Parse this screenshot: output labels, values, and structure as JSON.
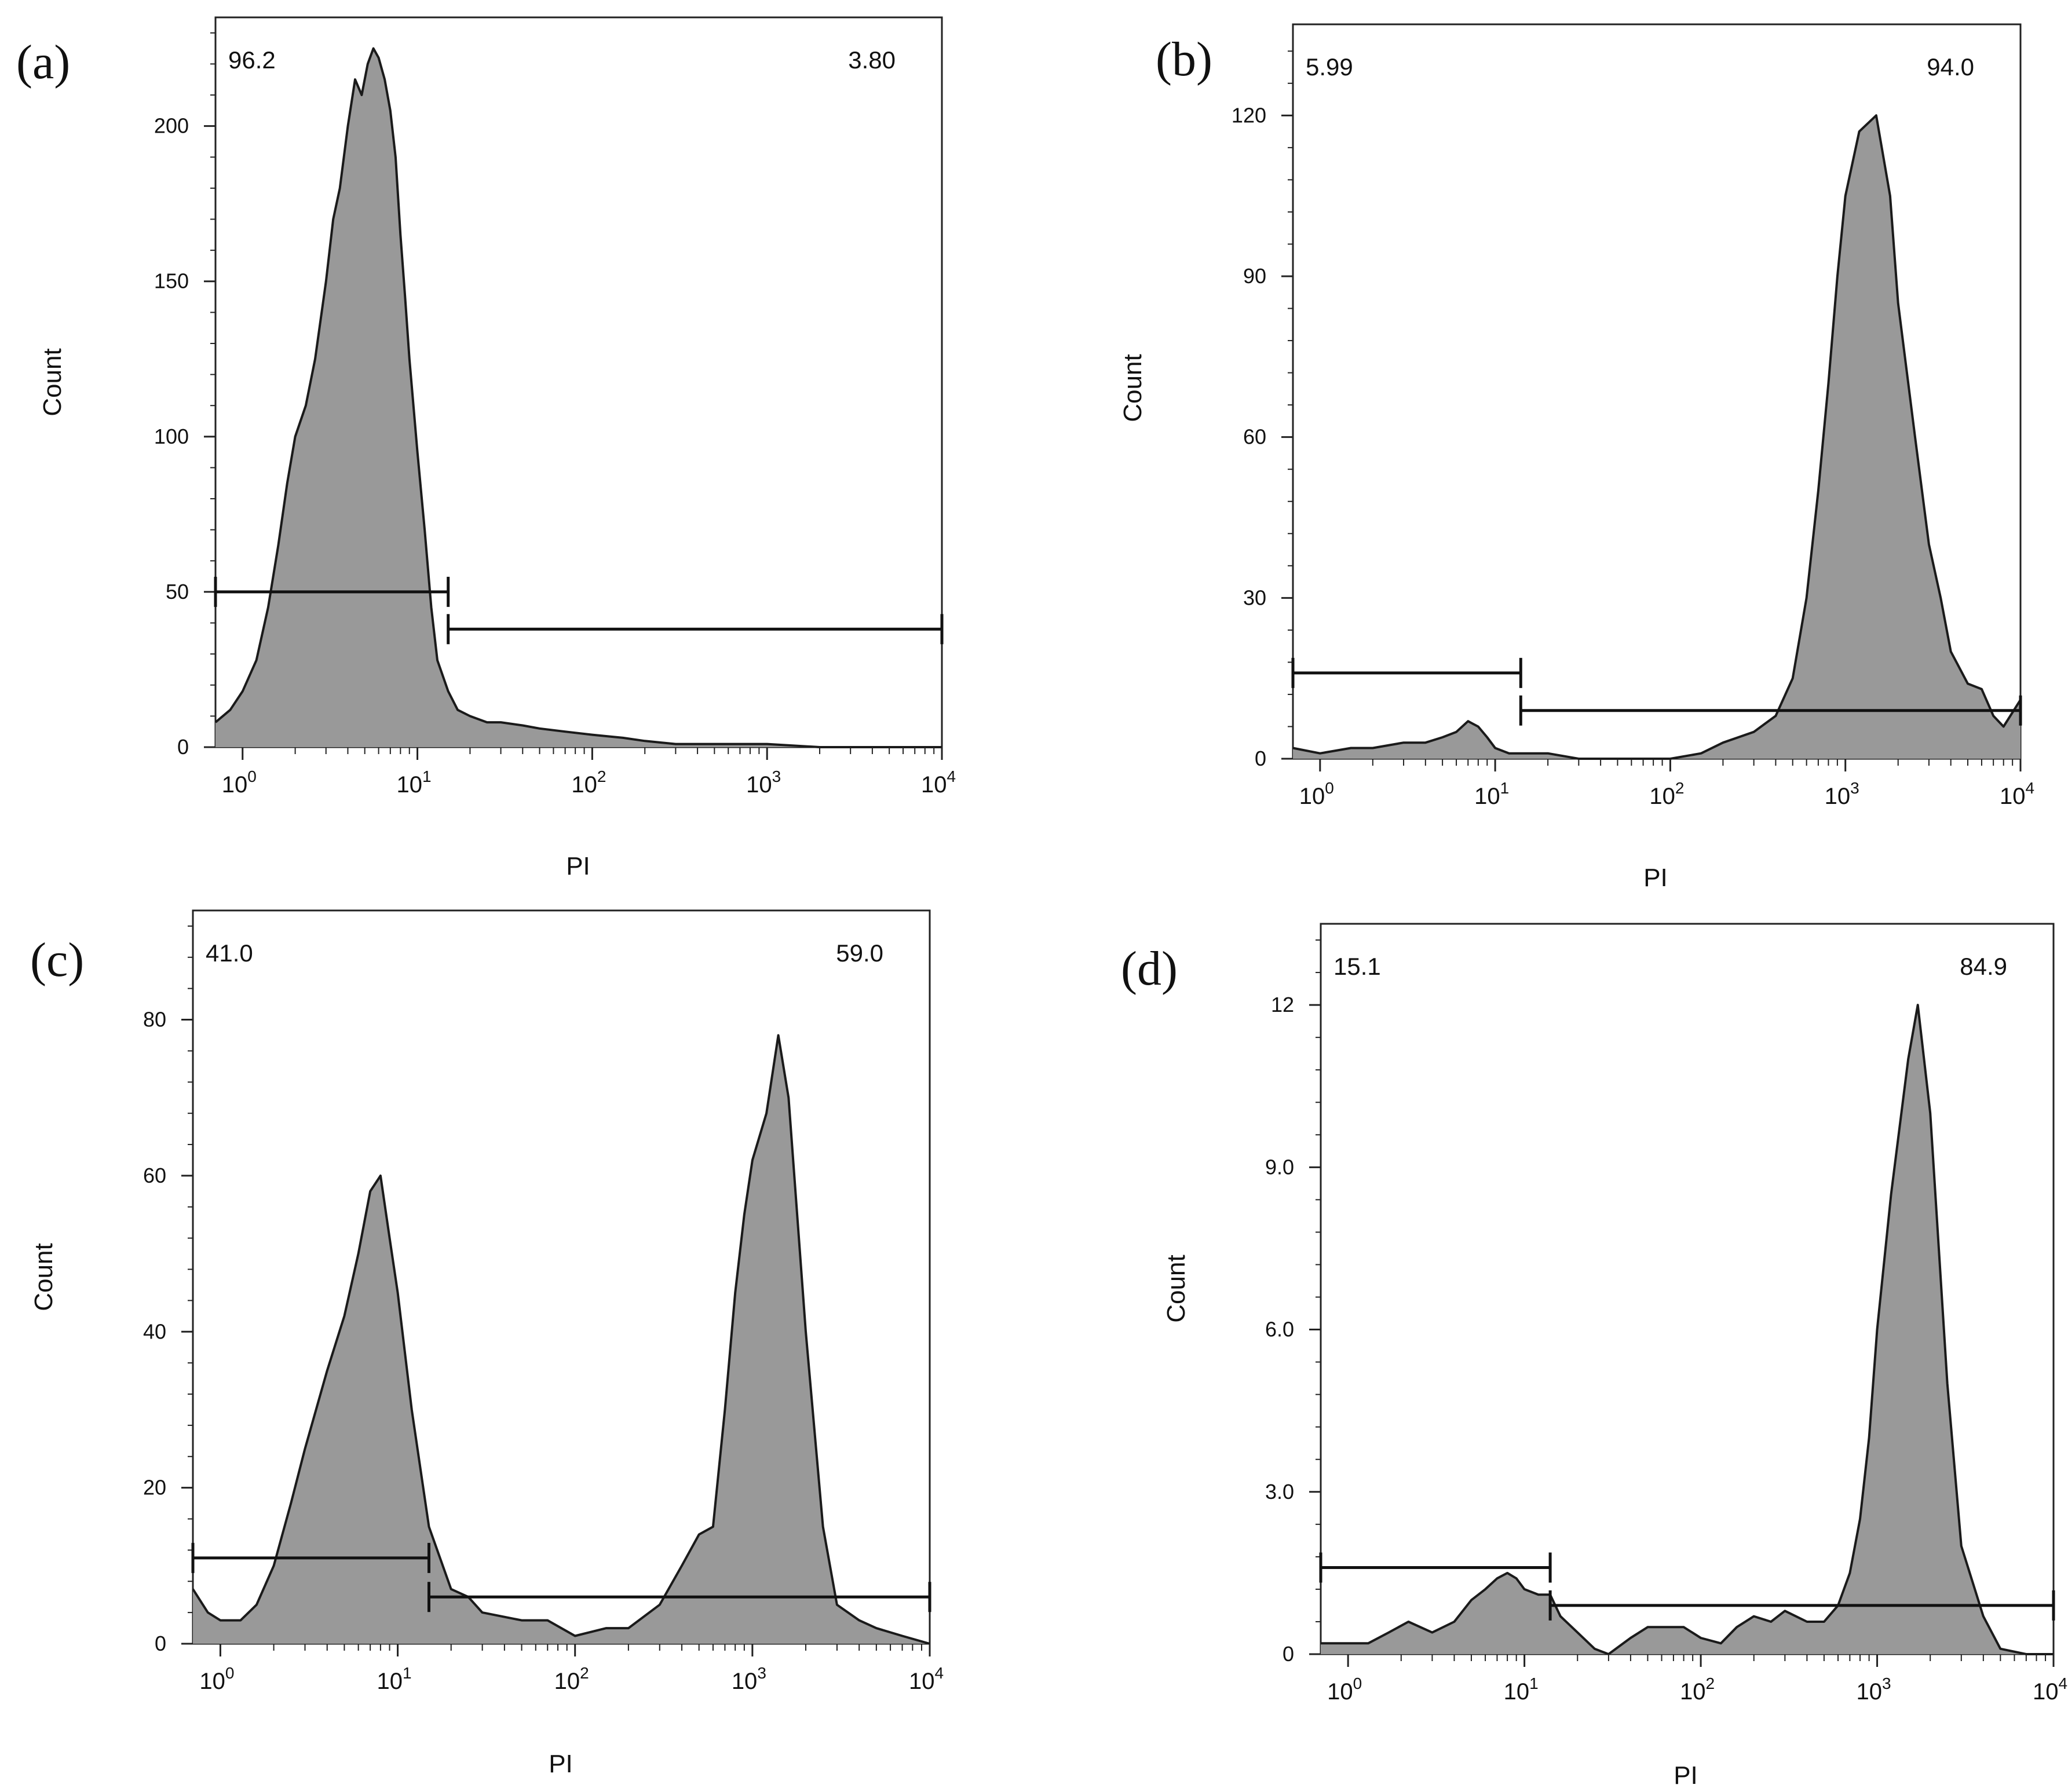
{
  "figure": {
    "x_axis_label": "PI",
    "y_axis_label": "Count"
  },
  "chart_data": [
    {
      "type": "histogram",
      "panel_label": "(a)",
      "xlabel": "PI",
      "ylabel": "Count",
      "xscale": "log",
      "xlim": [
        0.7,
        10000
      ],
      "ylim": [
        0,
        235
      ],
      "x_tick_labels": [
        {
          "base": "10",
          "exp": "0"
        },
        {
          "base": "10",
          "exp": "1"
        },
        {
          "base": "10",
          "exp": "2"
        },
        {
          "base": "10",
          "exp": "3"
        },
        {
          "base": "10",
          "exp": "4"
        }
      ],
      "x_tick_values": [
        1,
        10,
        100,
        1000,
        10000
      ],
      "y_ticks": [
        0,
        50,
        100,
        150,
        200
      ],
      "y_tick_labels": [
        "0",
        "50",
        "100",
        "150",
        "200"
      ],
      "y_minor_step": 10,
      "gates": [
        {
          "label": "96.2",
          "label_position": "top-left",
          "x_range": [
            0.7,
            15
          ],
          "y_level": 50
        },
        {
          "label": "3.80",
          "label_position": "top-right",
          "x_range": [
            15,
            10000
          ],
          "y_level": 38
        }
      ],
      "histogram": {
        "x": [
          0.7,
          0.85,
          1.0,
          1.2,
          1.4,
          1.6,
          1.8,
          2.0,
          2.3,
          2.6,
          3.0,
          3.3,
          3.6,
          4.0,
          4.4,
          4.8,
          5.2,
          5.6,
          6.0,
          6.5,
          7.0,
          7.5,
          8.0,
          8.5,
          9.0,
          10,
          11,
          12,
          13,
          15,
          17,
          20,
          25,
          30,
          40,
          50,
          70,
          100,
          150,
          200,
          300,
          500,
          1000,
          2000,
          5000,
          10000
        ],
        "y": [
          8,
          12,
          18,
          28,
          45,
          65,
          85,
          100,
          110,
          125,
          150,
          170,
          180,
          200,
          215,
          210,
          220,
          225,
          222,
          215,
          205,
          190,
          165,
          145,
          125,
          95,
          70,
          45,
          28,
          18,
          12,
          10,
          8,
          8,
          7,
          6,
          5,
          4,
          3,
          2,
          1,
          1,
          1,
          0,
          0,
          0
        ]
      }
    },
    {
      "type": "histogram",
      "panel_label": "(b)",
      "xlabel": "PI",
      "ylabel": "Count",
      "xscale": "log",
      "xlim": [
        0.7,
        10000
      ],
      "ylim": [
        0,
        137
      ],
      "x_tick_labels": [
        {
          "base": "10",
          "exp": "0"
        },
        {
          "base": "10",
          "exp": "1"
        },
        {
          "base": "10",
          "exp": "2"
        },
        {
          "base": "10",
          "exp": "3"
        },
        {
          "base": "10",
          "exp": "4"
        }
      ],
      "x_tick_values": [
        1,
        10,
        100,
        1000,
        10000
      ],
      "y_ticks": [
        0,
        30,
        60,
        90,
        120
      ],
      "y_tick_labels": [
        "0",
        "30",
        "60",
        "90",
        "120"
      ],
      "y_minor_step": 6,
      "gates": [
        {
          "label": "5.99",
          "label_position": "top-left",
          "x_range": [
            0.7,
            14
          ],
          "y_level": 16
        },
        {
          "label": "94.0",
          "label_position": "top-right",
          "x_range": [
            14,
            10000
          ],
          "y_level": 9
        }
      ],
      "histogram": {
        "x": [
          0.7,
          1.0,
          1.5,
          2,
          3,
          4,
          5,
          6,
          7,
          8,
          9,
          10,
          12,
          15,
          20,
          30,
          50,
          70,
          100,
          150,
          200,
          300,
          400,
          500,
          600,
          700,
          800,
          900,
          1000,
          1200,
          1500,
          1800,
          2000,
          2500,
          3000,
          3500,
          4000,
          5000,
          6000,
          7000,
          8000,
          10000
        ],
        "y": [
          2,
          1,
          2,
          2,
          3,
          3,
          4,
          5,
          7,
          6,
          4,
          2,
          1,
          1,
          1,
          0,
          0,
          0,
          0,
          1,
          3,
          5,
          8,
          15,
          30,
          50,
          70,
          90,
          105,
          117,
          120,
          105,
          85,
          60,
          40,
          30,
          20,
          14,
          13,
          8,
          6,
          11
        ]
      }
    },
    {
      "type": "histogram",
      "panel_label": "(c)",
      "xlabel": "PI",
      "ylabel": "Count",
      "xscale": "log",
      "xlim": [
        0.7,
        10000
      ],
      "ylim": [
        0,
        94
      ],
      "x_tick_labels": [
        {
          "base": "10",
          "exp": "0"
        },
        {
          "base": "10",
          "exp": "1"
        },
        {
          "base": "10",
          "exp": "2"
        },
        {
          "base": "10",
          "exp": "3"
        },
        {
          "base": "10",
          "exp": "4"
        }
      ],
      "x_tick_values": [
        1,
        10,
        100,
        1000,
        10000
      ],
      "y_ticks": [
        0,
        20,
        40,
        60,
        80
      ],
      "y_tick_labels": [
        "0",
        "20",
        "40",
        "60",
        "80"
      ],
      "y_minor_step": 4,
      "gates": [
        {
          "label": "41.0",
          "label_position": "top-left",
          "x_range": [
            0.7,
            15
          ],
          "y_level": 11
        },
        {
          "label": "59.0",
          "label_position": "top-right",
          "x_range": [
            15,
            10000
          ],
          "y_level": 6
        }
      ],
      "histogram": {
        "x": [
          0.7,
          0.85,
          1.0,
          1.3,
          1.6,
          2.0,
          2.5,
          3.0,
          4.0,
          5.0,
          6.0,
          7.0,
          8.0,
          9.0,
          10,
          12,
          15,
          20,
          25,
          30,
          50,
          70,
          100,
          150,
          200,
          300,
          400,
          500,
          600,
          700,
          800,
          900,
          1000,
          1200,
          1400,
          1600,
          2000,
          2500,
          3000,
          4000,
          5000,
          7000,
          10000
        ],
        "y": [
          7,
          4,
          3,
          3,
          5,
          10,
          18,
          25,
          35,
          42,
          50,
          58,
          60,
          52,
          45,
          30,
          15,
          7,
          6,
          4,
          3,
          3,
          1,
          2,
          2,
          5,
          10,
          14,
          15,
          30,
          45,
          55,
          62,
          68,
          78,
          70,
          40,
          15,
          5,
          3,
          2,
          1,
          0
        ]
      }
    },
    {
      "type": "histogram",
      "panel_label": "(d)",
      "xlabel": "PI",
      "ylabel": "Count",
      "xscale": "log",
      "xlim": [
        0.7,
        10000
      ],
      "ylim": [
        0,
        13.5
      ],
      "x_tick_labels": [
        {
          "base": "10",
          "exp": "0"
        },
        {
          "base": "10",
          "exp": "1"
        },
        {
          "base": "10",
          "exp": "2"
        },
        {
          "base": "10",
          "exp": "3"
        },
        {
          "base": "10",
          "exp": "4"
        }
      ],
      "x_tick_values": [
        1,
        10,
        100,
        1000,
        10000
      ],
      "y_ticks": [
        0,
        3,
        6,
        9,
        12
      ],
      "y_tick_labels": [
        "0",
        "3.0",
        "6.0",
        "9.0",
        "12"
      ],
      "y_minor_step": 0.6,
      "gates": [
        {
          "label": "15.1",
          "label_position": "top-left",
          "x_range": [
            0.7,
            14
          ],
          "y_level": 1.6
        },
        {
          "label": "84.9",
          "label_position": "top-right",
          "x_range": [
            14,
            10000
          ],
          "y_level": 0.9
        }
      ],
      "histogram": {
        "x": [
          0.7,
          1.0,
          1.3,
          1.7,
          2.2,
          3.0,
          4.0,
          5.0,
          6.0,
          7.0,
          8.0,
          9.0,
          10,
          12,
          14,
          16,
          20,
          25,
          30,
          40,
          50,
          60,
          80,
          100,
          130,
          160,
          200,
          250,
          300,
          400,
          500,
          600,
          700,
          800,
          900,
          1000,
          1200,
          1500,
          1700,
          2000,
          2500,
          3000,
          4000,
          5000,
          7000,
          10000
        ],
        "y": [
          0.2,
          0.2,
          0.2,
          0.4,
          0.6,
          0.4,
          0.6,
          1.0,
          1.2,
          1.4,
          1.5,
          1.4,
          1.2,
          1.1,
          1.1,
          0.7,
          0.4,
          0.1,
          0.0,
          0.3,
          0.5,
          0.5,
          0.5,
          0.3,
          0.2,
          0.5,
          0.7,
          0.6,
          0.8,
          0.6,
          0.6,
          0.9,
          1.5,
          2.5,
          4.0,
          6.0,
          8.5,
          11.0,
          12.0,
          10.0,
          5.0,
          2.0,
          0.7,
          0.1,
          0.0,
          0.0
        ]
      }
    }
  ]
}
